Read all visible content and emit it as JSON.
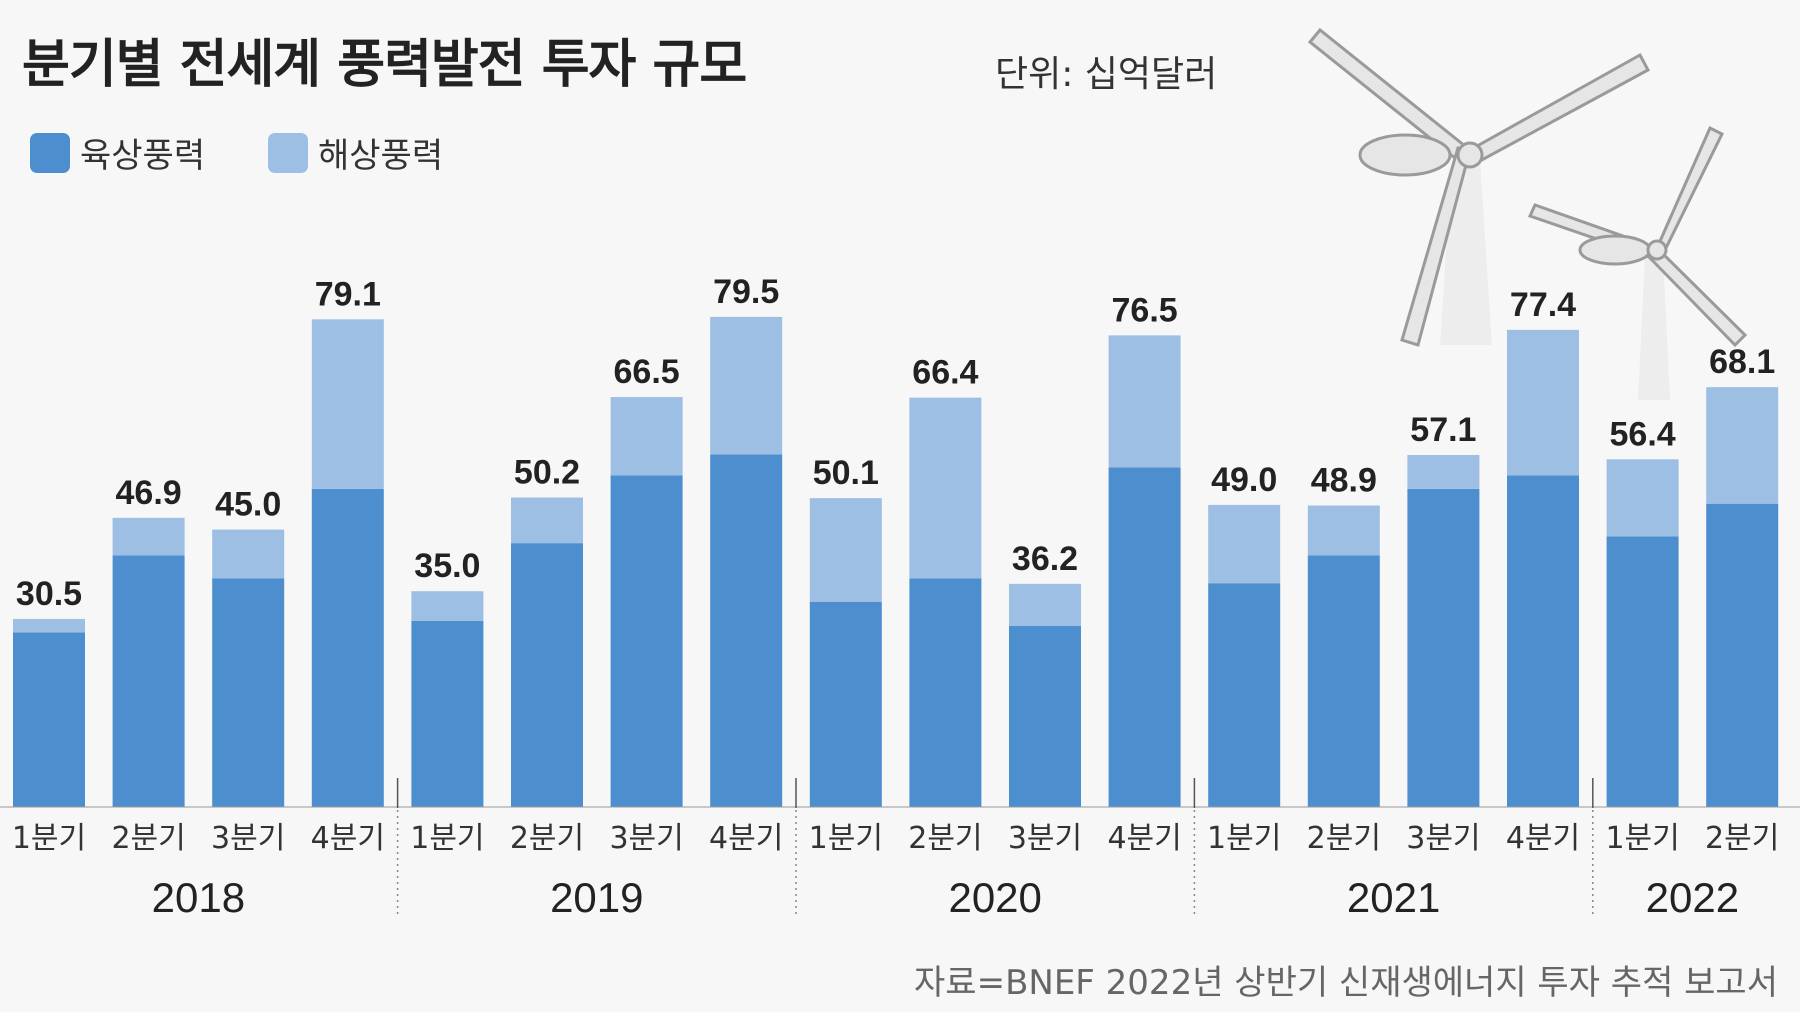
{
  "chart_data": {
    "type": "bar",
    "stacked": true,
    "title": "분기별 전세계 풍력발전 투자 규모",
    "unit": "단위: 십억달러",
    "source": "자료=BNEF 2022년 상반기 신재생에너지 투자 추적 보고서",
    "categories": [
      "1분기",
      "2분기",
      "3분기",
      "4분기",
      "1분기",
      "2분기",
      "3분기",
      "4분기",
      "1분기",
      "2분기",
      "3분기",
      "4분기",
      "1분기",
      "2분기",
      "3분기",
      "4분기",
      "1분기",
      "2분기"
    ],
    "years": [
      {
        "label": "2018",
        "quarters": 4
      },
      {
        "label": "2019",
        "quarters": 4
      },
      {
        "label": "2020",
        "quarters": 4
      },
      {
        "label": "2021",
        "quarters": 4
      },
      {
        "label": "2022",
        "quarters": 2
      }
    ],
    "totals": [
      30.5,
      46.9,
      45.0,
      79.1,
      35.0,
      50.2,
      66.5,
      79.5,
      50.1,
      66.4,
      36.2,
      76.5,
      49.0,
      48.9,
      57.1,
      77.4,
      56.4,
      68.1
    ],
    "series": [
      {
        "name": "육상풍력",
        "color": "#4d8fce",
        "values": [
          28.3,
          40.8,
          37.1,
          51.6,
          30.2,
          42.8,
          53.8,
          57.2,
          33.3,
          37.1,
          29.4,
          55.1,
          36.3,
          40.8,
          51.6,
          53.8,
          43.9,
          49.2
        ]
      },
      {
        "name": "해상풍력",
        "color": "#9dbfe4",
        "values": [
          2.2,
          6.1,
          7.9,
          27.5,
          4.8,
          7.4,
          12.7,
          22.3,
          16.8,
          29.3,
          6.8,
          21.4,
          12.7,
          8.1,
          5.5,
          23.6,
          12.5,
          18.9
        ]
      }
    ],
    "ylim": [
      0,
      80
    ],
    "grid": false,
    "legend": "top-left"
  }
}
